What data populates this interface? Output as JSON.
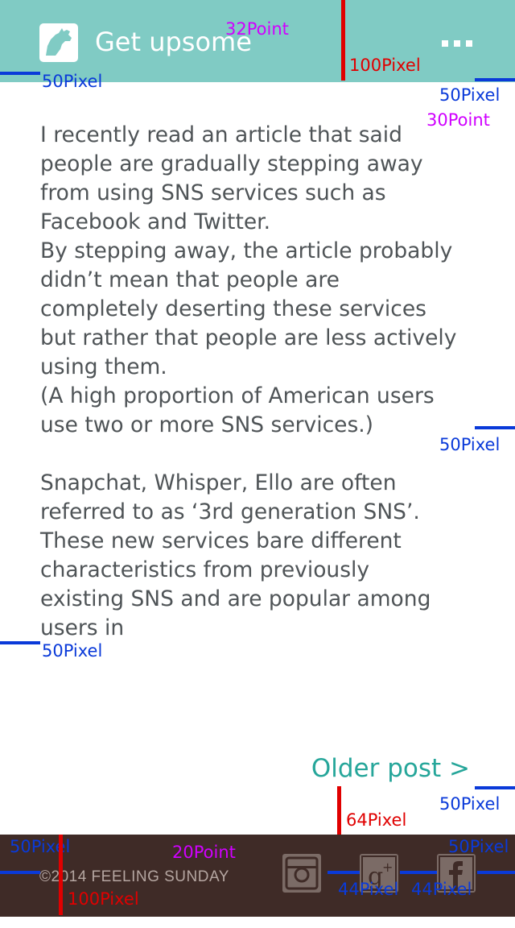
{
  "appbar": {
    "title": "Get upsome",
    "logo_icon": "rhino-logo-icon",
    "menu_icon": "more-dots-icon",
    "color": "#80cbc4"
  },
  "article": {
    "paragraphs": [
      " I recently read an article that said\npeople are gradually stepping away\nfrom using SNS services such as\nFacebook and Twitter.\nBy stepping away, the article probably\ndidn’t mean that people are\ncompletely deserting these services\nbut rather that people are less actively\nusing them.\n(A high proportion of American users\nuse two or more SNS services.)",
      "Snapchat, Whisper, Ello are often\nreferred to as ‘3rd generation SNS’.\nThese new services bare different\ncharacteristics from previously\nexisting SNS and are popular among\nusers in"
    ]
  },
  "older_post": "Older post >",
  "footer": {
    "copyright": "©2014 FEELING SUNDAY",
    "social_icons": [
      "instagram-icon",
      "google-plus-icon",
      "facebook-icon"
    ],
    "color": "#3f2b27"
  },
  "annotations": {
    "title_size": "32Point",
    "header_height": "100Pixel",
    "header_left_margin": "50Pixel",
    "content_right_margin": "50Pixel",
    "content_size": "30Point",
    "content_right_margin_2": "50Pixel",
    "content_left_margin": "50Pixel",
    "older_post_gap": "64Pixel",
    "older_post_margin": "50Pixel",
    "footer_left_margin": "50Pixel",
    "footer_size": "20Point",
    "footer_right_margin": "50Pixel",
    "footer_height": "100Pixel",
    "icon_size_1": "44Pixel",
    "icon_size_2": "44Pixel"
  }
}
